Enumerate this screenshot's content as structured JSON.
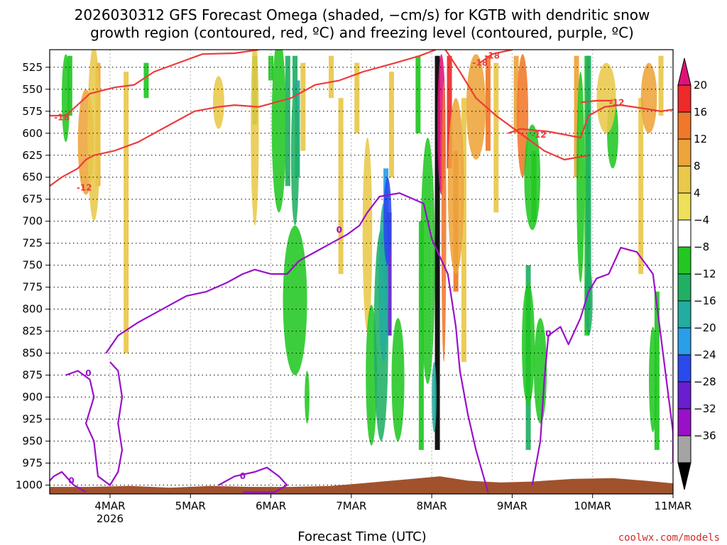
{
  "chart_data": {
    "type": "heatmap",
    "title_line1": "2026030312 GFS Forecast Omega (shaded, −cm/s) for KGTB with dendritic snow",
    "title_line2": "growth region (contoured, red, ºC) and freezing level (contoured, purple, ºC)",
    "xlabel": "Forecast Time (UTC)",
    "credit": "coolwx.com/models",
    "x_ticks": [
      {
        "label": "4MAR",
        "sub": "2026",
        "t": 0.75
      },
      {
        "label": "5MAR",
        "sub": "",
        "t": 1.75
      },
      {
        "label": "6MAR",
        "sub": "",
        "t": 2.75
      },
      {
        "label": "7MAR",
        "sub": "",
        "t": 3.75
      },
      {
        "label": "8MAR",
        "sub": "",
        "t": 4.75
      },
      {
        "label": "9MAR",
        "sub": "",
        "t": 5.75
      },
      {
        "label": "10MAR",
        "sub": "",
        "t": 6.75
      },
      {
        "label": "11MAR",
        "sub": "",
        "t": 7.75
      }
    ],
    "x_range": [
      0,
      7.75
    ],
    "y_ticks": [
      525,
      550,
      575,
      600,
      625,
      650,
      675,
      700,
      725,
      750,
      775,
      800,
      825,
      850,
      875,
      900,
      925,
      950,
      975,
      1000
    ],
    "y_range_hpa": [
      1010,
      505
    ],
    "colorbar": {
      "labels": [
        "20",
        "16",
        "12",
        "8",
        "4",
        "−4",
        "−8",
        "−12",
        "−16",
        "−20",
        "−24",
        "−28",
        "−32",
        "−36"
      ],
      "colors": [
        "#e0107a",
        "#ee2a2a",
        "#f0782a",
        "#eda43a",
        "#e9c84a",
        "#ede05a",
        "#ffffff",
        "#22c722",
        "#20b064",
        "#22ada0",
        "#2a9ee8",
        "#2a4aec",
        "#6a1ed0",
        "#9a10c8",
        "#a4a4a4",
        "#000000"
      ]
    },
    "omega_blobs": [
      {
        "t": 0.45,
        "p": 610,
        "w": 0.1,
        "h": 60,
        "level": 8
      },
      {
        "t": 0.55,
        "p": 600,
        "w": 0.08,
        "h": 100,
        "level": 4
      },
      {
        "t": 0.2,
        "p": 560,
        "w": 0.05,
        "h": 50,
        "level": -8
      },
      {
        "t": 2.1,
        "p": 565,
        "w": 0.07,
        "h": 30,
        "level": 4
      },
      {
        "t": 2.55,
        "p": 595,
        "w": 0.05,
        "h": 110,
        "level": 4
      },
      {
        "t": 2.85,
        "p": 590,
        "w": 0.09,
        "h": 100,
        "level": -8
      },
      {
        "t": 3.05,
        "p": 625,
        "w": 0.05,
        "h": 80,
        "level": -12
      },
      {
        "t": 3.05,
        "p": 790,
        "w": 0.15,
        "h": 85,
        "level": -8
      },
      {
        "t": 3.2,
        "p": 900,
        "w": 0.03,
        "h": 30,
        "level": -8
      },
      {
        "t": 3.95,
        "p": 715,
        "w": 0.06,
        "h": 110,
        "level": 4
      },
      {
        "t": 4.0,
        "p": 875,
        "w": 0.07,
        "h": 80,
        "level": -8
      },
      {
        "t": 4.12,
        "p": 830,
        "w": 0.09,
        "h": 120,
        "level": -12
      },
      {
        "t": 4.15,
        "p": 770,
        "w": 0.06,
        "h": 90,
        "level": -16
      },
      {
        "t": 4.2,
        "p": 700,
        "w": 0.05,
        "h": 50,
        "level": -24
      },
      {
        "t": 4.33,
        "p": 880,
        "w": 0.08,
        "h": 70,
        "level": -8
      },
      {
        "t": 4.7,
        "p": 745,
        "w": 0.09,
        "h": 140,
        "level": -8
      },
      {
        "t": 4.78,
        "p": 900,
        "w": 0.03,
        "h": 40,
        "level": -16
      },
      {
        "t": 4.87,
        "p": 590,
        "w": 0.05,
        "h": 80,
        "level": 20
      },
      {
        "t": 4.9,
        "p": 700,
        "w": 0.03,
        "h": 160,
        "level": 12
      },
      {
        "t": 5.05,
        "p": 660,
        "w": 0.1,
        "h": 100,
        "level": 8
      },
      {
        "t": 5.3,
        "p": 570,
        "w": 0.12,
        "h": 60,
        "level": 8
      },
      {
        "t": 5.88,
        "p": 580,
        "w": 0.07,
        "h": 70,
        "level": 12
      },
      {
        "t": 6.0,
        "p": 650,
        "w": 0.1,
        "h": 60,
        "level": -8
      },
      {
        "t": 5.95,
        "p": 840,
        "w": 0.08,
        "h": 70,
        "level": -8
      },
      {
        "t": 6.1,
        "p": 870,
        "w": 0.08,
        "h": 60,
        "level": -8
      },
      {
        "t": 6.6,
        "p": 650,
        "w": 0.05,
        "h": 120,
        "level": -8
      },
      {
        "t": 6.7,
        "p": 790,
        "w": 0.05,
        "h": 40,
        "level": -12
      },
      {
        "t": 7.0,
        "p": 600,
        "w": 0.07,
        "h": 40,
        "level": -8
      },
      {
        "t": 6.92,
        "p": 560,
        "w": 0.12,
        "h": 40,
        "level": 4
      },
      {
        "t": 7.45,
        "p": 560,
        "w": 0.1,
        "h": 40,
        "level": 8
      },
      {
        "t": 7.5,
        "p": 880,
        "w": 0.05,
        "h": 60,
        "level": -8
      }
    ],
    "omega_strips": [
      {
        "t": 0.25,
        "p1": 512,
        "p2": 580,
        "level": -8
      },
      {
        "t": 0.6,
        "p1": 520,
        "p2": 660,
        "level": 8
      },
      {
        "t": 0.95,
        "p1": 530,
        "p2": 850,
        "level": 4
      },
      {
        "t": 1.2,
        "p1": 520,
        "p2": 560,
        "level": -8
      },
      {
        "t": 2.55,
        "p1": 512,
        "p2": 590,
        "level": -8
      },
      {
        "t": 2.75,
        "p1": 512,
        "p2": 540,
        "level": -8
      },
      {
        "t": 2.96,
        "p1": 512,
        "p2": 660,
        "level": -12
      },
      {
        "t": 3.05,
        "p1": 512,
        "p2": 560,
        "level": -12
      },
      {
        "t": 3.08,
        "p1": 540,
        "p2": 650,
        "level": -16
      },
      {
        "t": 3.15,
        "p1": 520,
        "p2": 620,
        "level": 4
      },
      {
        "t": 3.5,
        "p1": 512,
        "p2": 560,
        "level": 4
      },
      {
        "t": 3.62,
        "p1": 560,
        "p2": 760,
        "level": 4
      },
      {
        "t": 3.82,
        "p1": 520,
        "p2": 600,
        "level": 4
      },
      {
        "t": 4.25,
        "p1": 530,
        "p2": 650,
        "level": 4
      },
      {
        "t": 4.18,
        "p1": 640,
        "p2": 790,
        "level": -20
      },
      {
        "t": 4.22,
        "p1": 690,
        "p2": 830,
        "level": -28
      },
      {
        "t": 4.58,
        "p1": 512,
        "p2": 600,
        "level": -8
      },
      {
        "t": 4.62,
        "p1": 700,
        "p2": 960,
        "level": -8
      },
      {
        "t": 4.82,
        "p1": 512,
        "p2": 960,
        "level": -36
      },
      {
        "t": 4.97,
        "p1": 512,
        "p2": 640,
        "level": 16
      },
      {
        "t": 5.05,
        "p1": 620,
        "p2": 780,
        "level": 12
      },
      {
        "t": 5.15,
        "p1": 560,
        "p2": 860,
        "level": 4
      },
      {
        "t": 5.45,
        "p1": 512,
        "p2": 620,
        "level": 12
      },
      {
        "t": 5.55,
        "p1": 520,
        "p2": 690,
        "level": 4
      },
      {
        "t": 5.8,
        "p1": 512,
        "p2": 600,
        "level": 8
      },
      {
        "t": 6.02,
        "p1": 620,
        "p2": 700,
        "level": -8
      },
      {
        "t": 5.95,
        "p1": 750,
        "p2": 960,
        "level": -12
      },
      {
        "t": 6.55,
        "p1": 512,
        "p2": 650,
        "level": 8
      },
      {
        "t": 6.68,
        "p1": 512,
        "p2": 830,
        "level": -8
      },
      {
        "t": 6.7,
        "p1": 512,
        "p2": 800,
        "level": -12
      },
      {
        "t": 7.35,
        "p1": 560,
        "p2": 760,
        "level": 4
      },
      {
        "t": 7.55,
        "p1": 780,
        "p2": 960,
        "level": -8
      },
      {
        "t": 7.6,
        "p1": 512,
        "p2": 580,
        "level": 4
      }
    ],
    "contours_red": [
      {
        "label": "-18",
        "points": [
          [
            0,
            580
          ],
          [
            0.2,
            580
          ],
          [
            0.5,
            555
          ],
          [
            0.8,
            548
          ],
          [
            1.05,
            545
          ],
          [
            1.3,
            530
          ],
          [
            1.6,
            520
          ],
          [
            1.9,
            510
          ],
          [
            2.3,
            509
          ],
          [
            2.6,
            505
          ]
        ],
        "label_at": [
          0.15,
          582
        ]
      },
      {
        "label": "-12",
        "points": [
          [
            0,
            660
          ],
          [
            0.15,
            650
          ],
          [
            0.35,
            640
          ],
          [
            0.45,
            630
          ],
          [
            0.55,
            625
          ],
          [
            0.8,
            620
          ],
          [
            1.1,
            610
          ],
          [
            1.5,
            590
          ],
          [
            1.8,
            575
          ],
          [
            2.1,
            570
          ],
          [
            2.3,
            568
          ],
          [
            2.6,
            570
          ],
          [
            3.0,
            560
          ],
          [
            3.3,
            545
          ],
          [
            3.6,
            540
          ],
          [
            3.9,
            530
          ],
          [
            4.3,
            520
          ],
          [
            4.6,
            512
          ],
          [
            4.8,
            505
          ]
        ],
        "label_at": [
          0.43,
          662
        ]
      },
      {
        "label": "-18",
        "points": [
          [
            4.92,
            505
          ],
          [
            5.1,
            530
          ],
          [
            5.3,
            560
          ],
          [
            5.55,
            580
          ],
          [
            5.85,
            600
          ],
          [
            6.15,
            620
          ],
          [
            6.4,
            630
          ],
          [
            6.7,
            625
          ]
        ],
        "label_at": [
          5.35,
          520
        ]
      },
      {
        "label": "-12",
        "points": [
          [
            5.7,
            600
          ],
          [
            5.85,
            595
          ],
          [
            6.2,
            598
          ],
          [
            6.6,
            605
          ],
          [
            6.7,
            580
          ],
          [
            6.9,
            570
          ],
          [
            7.1,
            568
          ],
          [
            7.4,
            572
          ],
          [
            7.6,
            575
          ],
          [
            7.75,
            573
          ]
        ],
        "label_at": [
          6.08,
          602
        ]
      },
      {
        "label": "-18",
        "points": [
          [
            5.35,
            520
          ],
          [
            5.5,
            510
          ],
          [
            5.75,
            505
          ]
        ],
        "label_at": [
          5.5,
          512
        ]
      },
      {
        "label": "-12",
        "points": [
          [
            6.6,
            565
          ],
          [
            6.8,
            563
          ],
          [
            7.0,
            563
          ]
        ],
        "label_at": [
          7.05,
          565
        ]
      }
    ],
    "contours_purple": [
      {
        "label": "0",
        "points": [
          [
            0.7,
            850
          ],
          [
            0.85,
            830
          ],
          [
            1.1,
            815
          ],
          [
            1.4,
            800
          ],
          [
            1.7,
            785
          ],
          [
            1.95,
            780
          ],
          [
            2.2,
            770
          ],
          [
            2.4,
            760
          ],
          [
            2.55,
            755
          ],
          [
            2.75,
            760
          ],
          [
            2.95,
            760
          ],
          [
            3.1,
            745
          ],
          [
            3.3,
            735
          ],
          [
            3.5,
            725
          ],
          [
            3.7,
            715
          ],
          [
            3.85,
            705
          ],
          [
            3.95,
            690
          ],
          [
            4.1,
            672
          ],
          [
            4.35,
            668
          ],
          [
            4.65,
            680
          ],
          [
            4.75,
            720
          ],
          [
            4.95,
            760
          ],
          [
            5.05,
            820
          ],
          [
            5.1,
            870
          ],
          [
            5.2,
            920
          ],
          [
            5.3,
            960
          ],
          [
            5.45,
            1008
          ]
        ],
        "label_at": [
          3.6,
          710
        ]
      },
      {
        "label": "0",
        "points": [
          [
            6.0,
            1000
          ],
          [
            6.1,
            950
          ],
          [
            6.15,
            880
          ],
          [
            6.2,
            830
          ],
          [
            6.35,
            820
          ],
          [
            6.45,
            840
          ],
          [
            6.6,
            810
          ],
          [
            6.7,
            780
          ],
          [
            6.8,
            765
          ],
          [
            6.95,
            760
          ],
          [
            7.1,
            730
          ],
          [
            7.3,
            735
          ],
          [
            7.5,
            760
          ],
          [
            7.75,
            940
          ],
          [
            7.75,
            975
          ]
        ],
        "label_at": [
          6.2,
          828
        ]
      },
      {
        "label": "0",
        "points": [
          [
            0.2,
            875
          ],
          [
            0.35,
            870
          ],
          [
            0.5,
            880
          ],
          [
            0.55,
            900
          ],
          [
            0.45,
            930
          ],
          [
            0.55,
            950
          ],
          [
            0.6,
            990
          ],
          [
            0.75,
            1000
          ],
          [
            0.85,
            985
          ],
          [
            0.9,
            960
          ],
          [
            0.85,
            930
          ],
          [
            0.9,
            900
          ],
          [
            0.85,
            870
          ],
          [
            0.75,
            860
          ]
        ],
        "label_at": [
          0.48,
          873
        ]
      },
      {
        "label": "0",
        "points": [
          [
            -0.1,
            1005
          ],
          [
            0.05,
            990
          ],
          [
            0.15,
            985
          ],
          [
            0.3,
            1000
          ],
          [
            0.45,
            1008
          ]
        ],
        "label_at": [
          0.27,
          995
        ]
      },
      {
        "label": "0",
        "points": [
          [
            2.1,
            1000
          ],
          [
            2.3,
            990
          ],
          [
            2.55,
            985
          ],
          [
            2.7,
            980
          ],
          [
            2.85,
            990
          ],
          [
            2.95,
            1000
          ],
          [
            2.8,
            1008
          ],
          [
            2.4,
            1008
          ]
        ],
        "label_at": [
          2.4,
          990
        ]
      }
    ],
    "terrain": [
      [
        0,
        1002
      ],
      [
        0.5,
        1002
      ],
      [
        1.0,
        1001
      ],
      [
        1.5,
        1003
      ],
      [
        2.0,
        1001
      ],
      [
        2.5,
        1002
      ],
      [
        3.0,
        1002
      ],
      [
        3.5,
        1001
      ],
      [
        4.0,
        997
      ],
      [
        4.5,
        993
      ],
      [
        4.85,
        990
      ],
      [
        5.2,
        995
      ],
      [
        5.6,
        997
      ],
      [
        6.0,
        996
      ],
      [
        6.5,
        993
      ],
      [
        7.0,
        992
      ],
      [
        7.4,
        995
      ],
      [
        7.75,
        998
      ]
    ]
  }
}
